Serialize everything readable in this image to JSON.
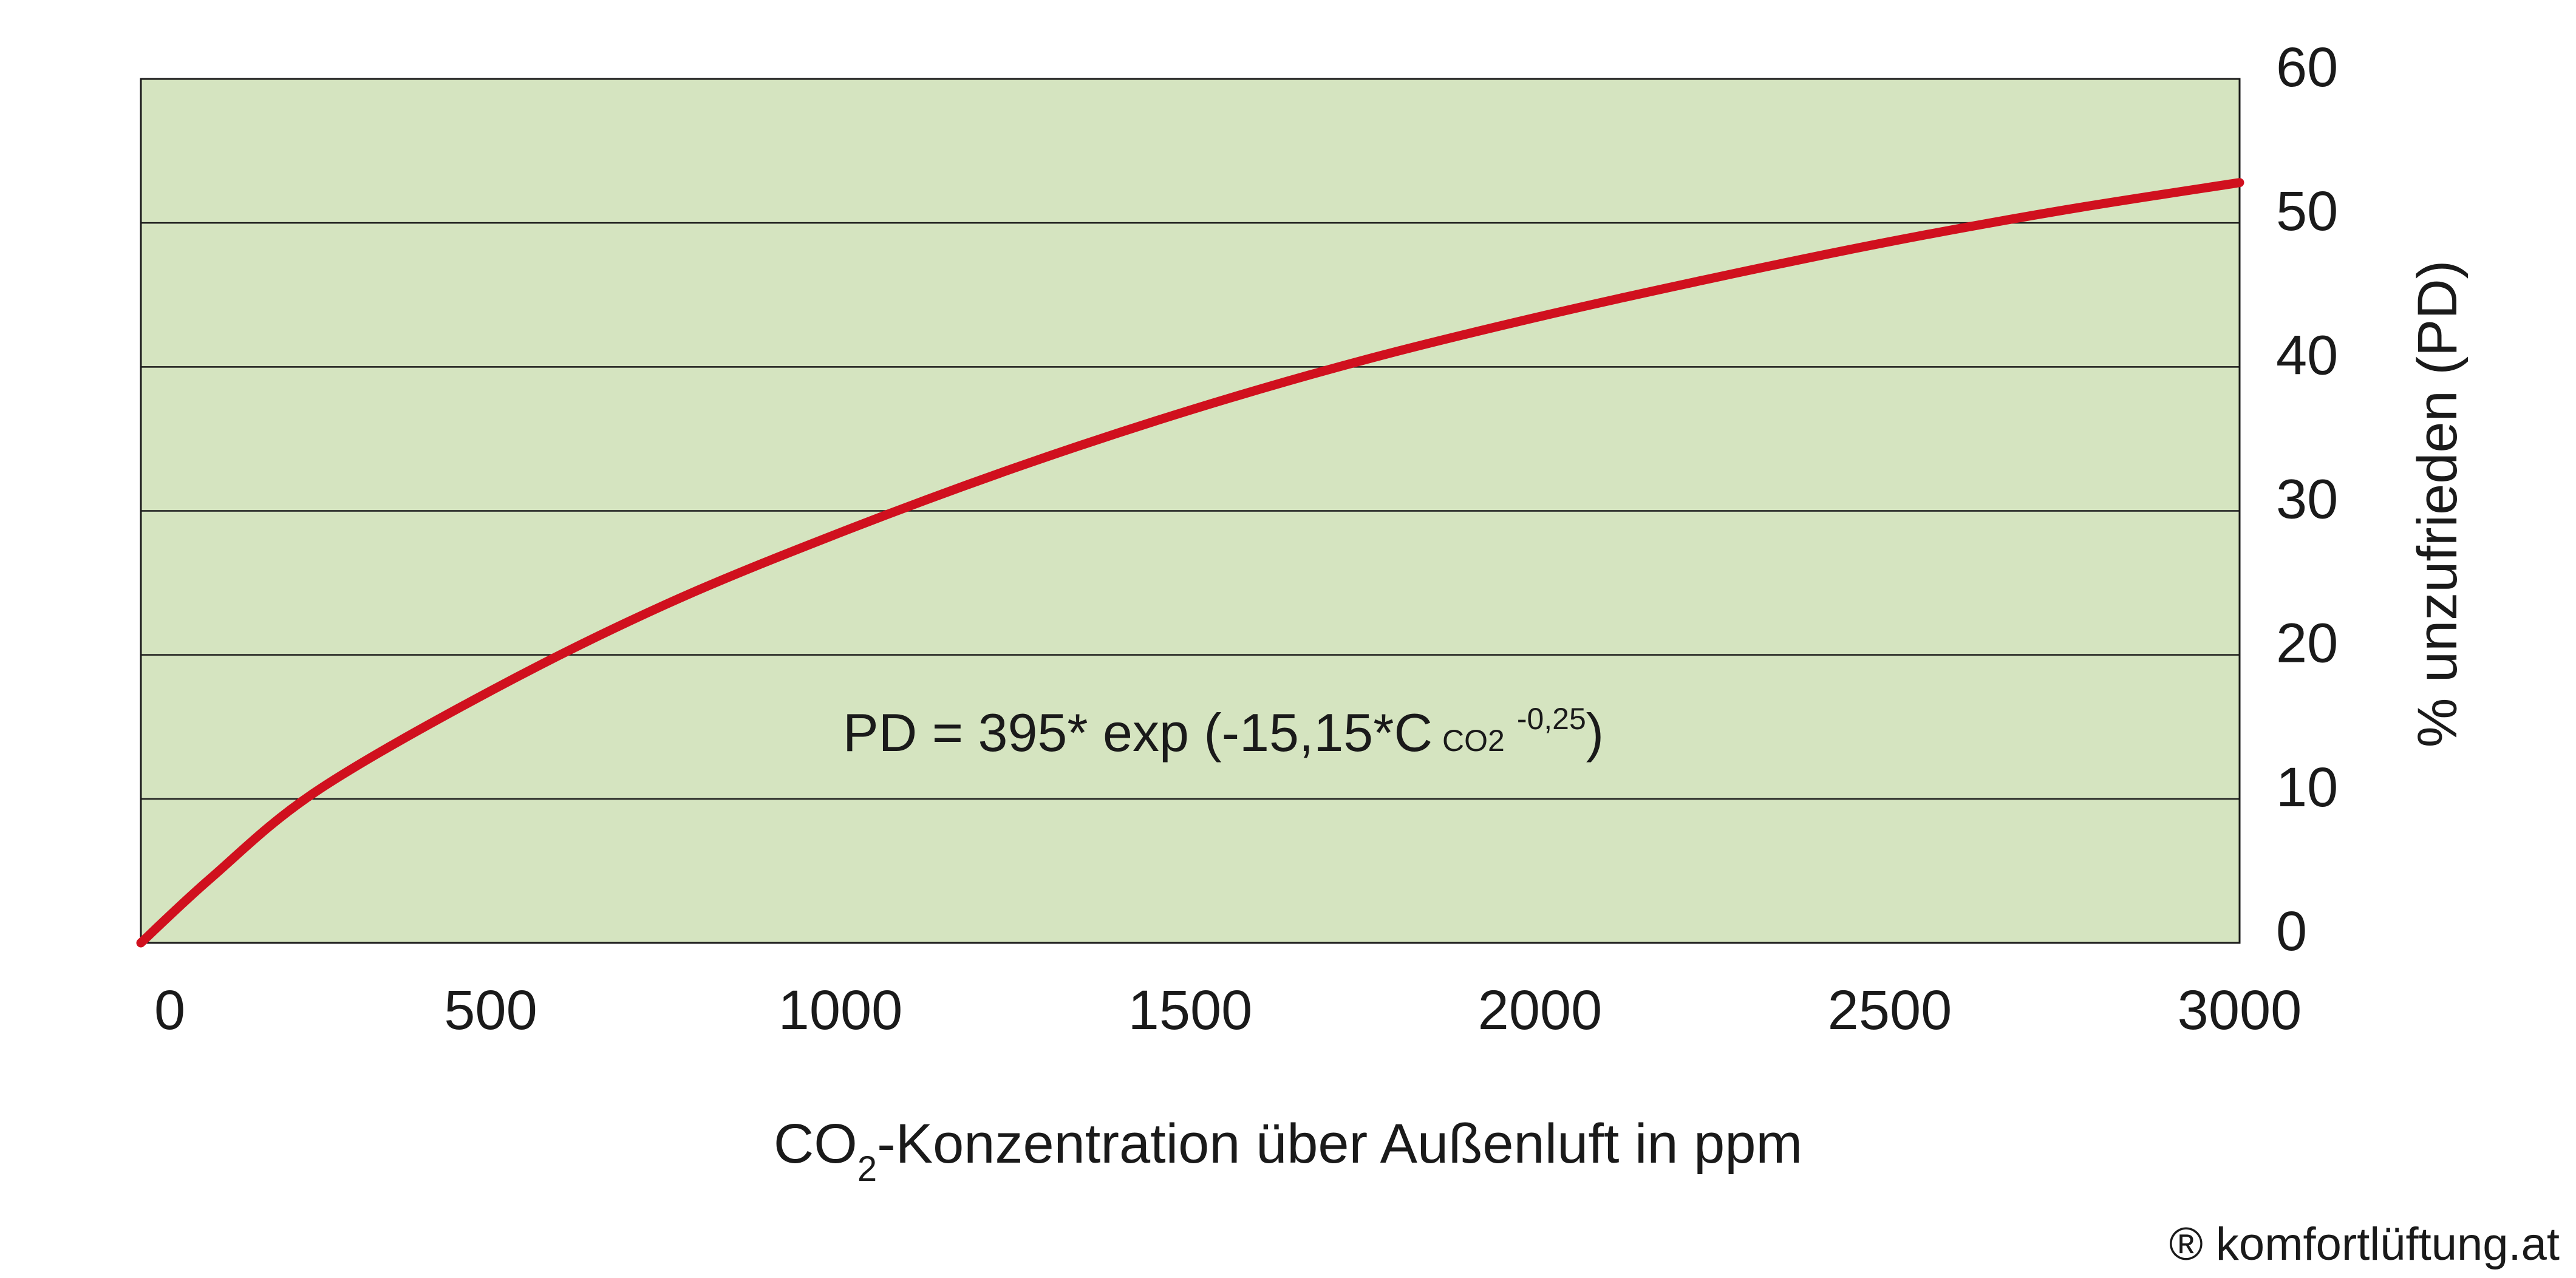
{
  "chart_data": {
    "type": "line",
    "title": "",
    "xlabel": {
      "prefix": "CO",
      "subscript": "2",
      "suffix": "-Konzentration über Außenluft in ppm"
    },
    "ylabel": "% unzufrieden (PD)",
    "y_axis_side": "right",
    "xlim": [
      0,
      3000
    ],
    "ylim": [
      0,
      60
    ],
    "x_ticks": [
      0,
      500,
      1000,
      1500,
      2000,
      2500,
      3000
    ],
    "y_ticks": [
      0,
      10,
      20,
      30,
      40,
      50,
      60
    ],
    "grid": "horizontal",
    "annotation": {
      "main": "PD = 395* exp (-15,15*C",
      "sub": "CO2",
      "sup": "-0,25",
      "close": ")"
    },
    "series": [
      {
        "x": [
          0,
          100,
          250,
          500,
          750,
          1000,
          1250,
          1500,
          1750,
          2000,
          2250,
          2500,
          2750,
          3000
        ],
        "y": [
          0,
          4.5,
          10.5,
          17.5,
          23.5,
          28.5,
          33,
          37,
          40.5,
          43.5,
          46.2,
          48.7,
          50.9,
          52.8
        ],
        "color": "#d0101e"
      }
    ],
    "plot_background": "#d5e4c0"
  },
  "copyright": "® komfortlüftung.at"
}
